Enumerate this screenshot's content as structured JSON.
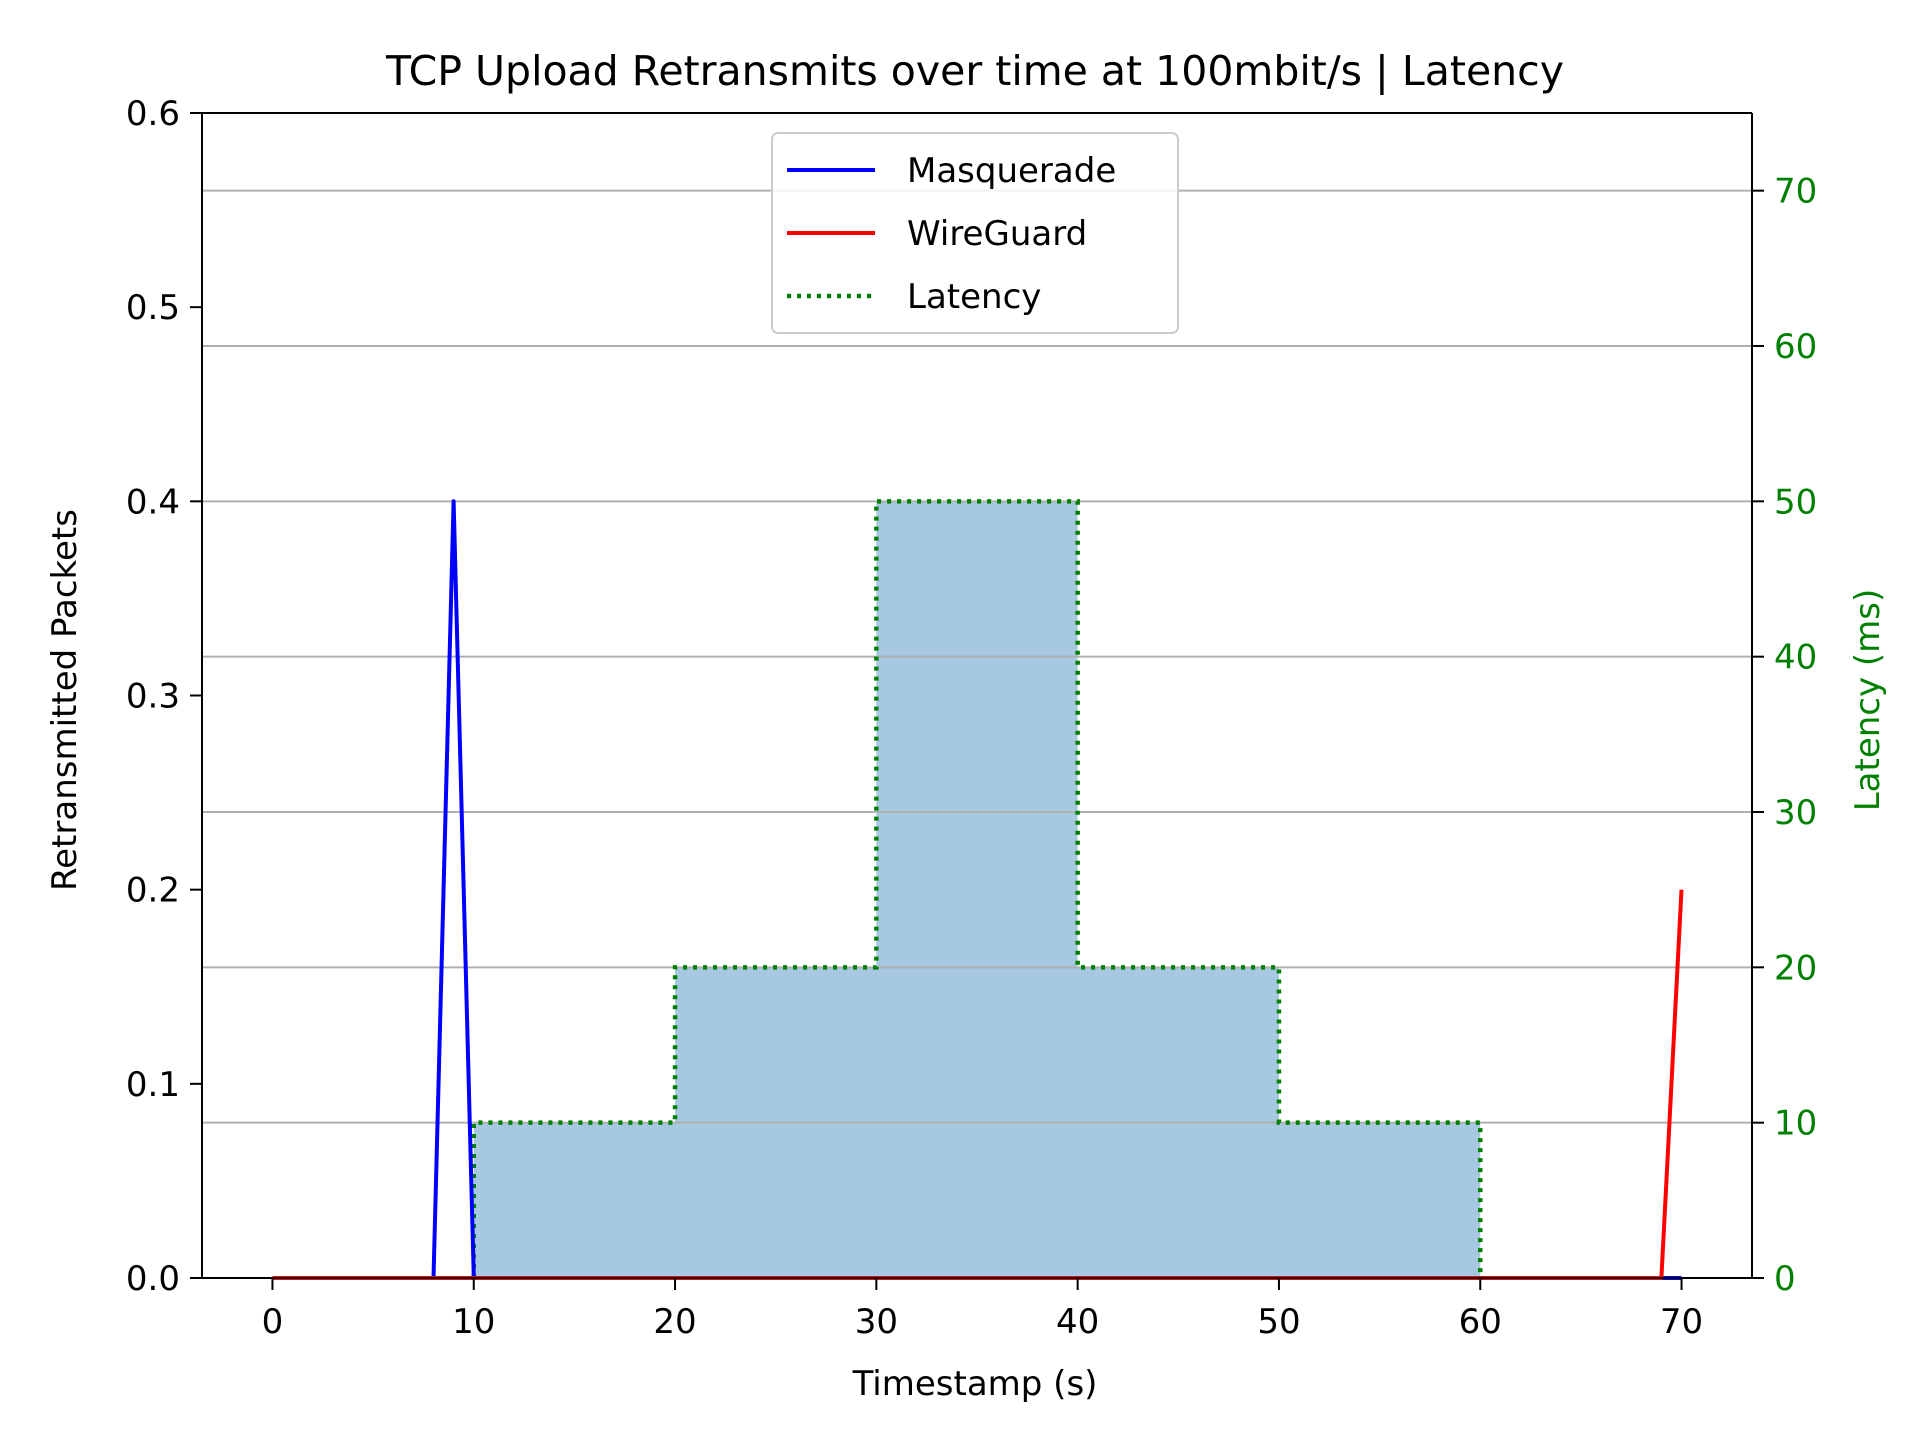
{
  "chart_data": {
    "type": "line",
    "title": "TCP Upload Retransmits over time at 100mbit/s | Latency",
    "xlabel": "Timestamp (s)",
    "ylabel": "Retransmitted Packets",
    "y2label": "Latency (ms)",
    "xlim": [
      -3.5,
      73.5
    ],
    "ylim": [
      0,
      0.6
    ],
    "y2lim": [
      0,
      75
    ],
    "xticks": [
      "0",
      "10",
      "20",
      "30",
      "40",
      "50",
      "60",
      "70"
    ],
    "yticks": [
      "0.0",
      "0.1",
      "0.2",
      "0.3",
      "0.4",
      "0.5",
      "0.6"
    ],
    "y2ticks": [
      "0",
      "10",
      "20",
      "30",
      "40",
      "50",
      "60",
      "70"
    ],
    "grid": "horizontal, right axis",
    "legend_position": "upper center",
    "colors": {
      "masquerade": "#0000ff",
      "wireguard": "#ff0000",
      "latency": "#008000",
      "fill": "#a6c8e0",
      "grid": "#b0b0b0",
      "axis_right": "#008000"
    },
    "series": [
      {
        "name": "Masquerade",
        "axis": "left",
        "style": "solid",
        "x": [
          0,
          1,
          2,
          3,
          4,
          5,
          6,
          7,
          8,
          9,
          10,
          11,
          12,
          13,
          14,
          15,
          16,
          17,
          18,
          19,
          20,
          21,
          22,
          23,
          24,
          25,
          26,
          27,
          28,
          29,
          30,
          31,
          32,
          33,
          34,
          35,
          36,
          37,
          38,
          39,
          40,
          41,
          42,
          43,
          44,
          45,
          46,
          47,
          48,
          49,
          50,
          51,
          52,
          53,
          54,
          55,
          56,
          57,
          58,
          59,
          60,
          61,
          62,
          63,
          64,
          65,
          66,
          67,
          68,
          69,
          70
        ],
        "values": [
          0,
          0,
          0,
          0,
          0,
          0,
          0,
          0,
          0,
          0.4,
          0,
          0,
          0,
          0,
          0,
          0,
          0,
          0,
          0,
          0,
          0,
          0,
          0,
          0,
          0,
          0,
          0,
          0,
          0,
          0,
          0,
          0,
          0,
          0,
          0,
          0,
          0,
          0,
          0,
          0,
          0,
          0,
          0,
          0,
          0,
          0,
          0,
          0,
          0,
          0,
          0,
          0,
          0,
          0,
          0,
          0,
          0,
          0,
          0,
          0,
          0,
          0,
          0,
          0,
          0,
          0,
          0,
          0,
          0,
          0,
          0
        ]
      },
      {
        "name": "WireGuard",
        "axis": "left",
        "style": "solid",
        "x": [
          0,
          1,
          2,
          3,
          4,
          5,
          6,
          7,
          8,
          9,
          10,
          11,
          12,
          13,
          14,
          15,
          16,
          17,
          18,
          19,
          20,
          21,
          22,
          23,
          24,
          25,
          26,
          27,
          28,
          29,
          30,
          31,
          32,
          33,
          34,
          35,
          36,
          37,
          38,
          39,
          40,
          41,
          42,
          43,
          44,
          45,
          46,
          47,
          48,
          49,
          50,
          51,
          52,
          53,
          54,
          55,
          56,
          57,
          58,
          59,
          60,
          61,
          62,
          63,
          64,
          65,
          66,
          67,
          68,
          69,
          70
        ],
        "values": [
          0,
          0,
          0,
          0,
          0,
          0,
          0,
          0,
          0,
          0,
          0,
          0,
          0,
          0,
          0,
          0,
          0,
          0,
          0,
          0,
          0,
          0,
          0,
          0,
          0,
          0,
          0,
          0,
          0,
          0,
          0,
          0,
          0,
          0,
          0,
          0,
          0,
          0,
          0,
          0,
          0,
          0,
          0,
          0,
          0,
          0,
          0,
          0,
          0,
          0,
          0,
          0,
          0,
          0,
          0,
          0,
          0,
          0,
          0,
          0,
          0,
          0,
          0,
          0,
          0,
          0,
          0,
          0,
          0,
          0,
          0.2
        ]
      },
      {
        "name": "Latency",
        "axis": "right",
        "style": "dotted-step-filled",
        "segments": [
          {
            "x0": 10,
            "x1": 20,
            "value": 10
          },
          {
            "x0": 20,
            "x1": 30,
            "value": 20
          },
          {
            "x0": 30,
            "x1": 40,
            "value": 50
          },
          {
            "x0": 40,
            "x1": 50,
            "value": 20
          },
          {
            "x0": 50,
            "x1": 60,
            "value": 10
          }
        ]
      }
    ]
  }
}
